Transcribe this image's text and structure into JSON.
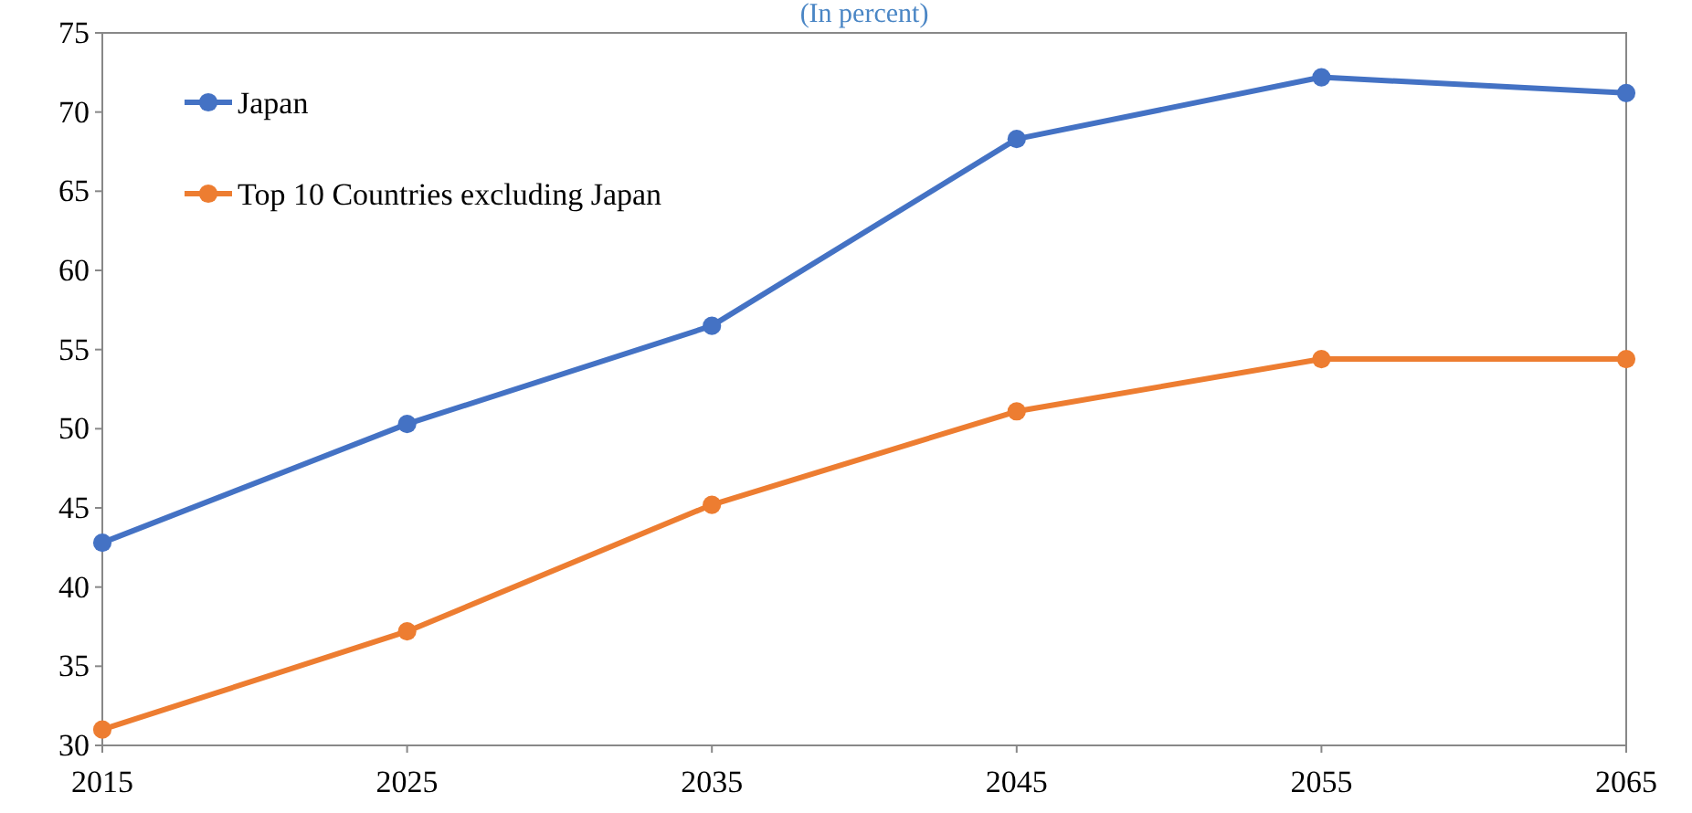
{
  "chart_data": {
    "type": "line",
    "subtitle": "(In percent)",
    "x": [
      2015,
      2025,
      2035,
      2045,
      2055,
      2065
    ],
    "series": [
      {
        "name": "Japan",
        "color": "#4472c4",
        "values": [
          42.8,
          50.3,
          56.5,
          68.3,
          72.2,
          71.2
        ]
      },
      {
        "name": "Top 10 Countries excluding Japan",
        "color": "#ed7d31",
        "values": [
          31.0,
          37.2,
          45.2,
          51.1,
          54.4,
          54.4
        ]
      }
    ],
    "xlim": [
      2015,
      2065
    ],
    "xticks": [
      2015,
      2025,
      2035,
      2045,
      2055,
      2065
    ],
    "ylim": [
      30,
      75
    ],
    "yticks": [
      30,
      35,
      40,
      45,
      50,
      55,
      60,
      65,
      70,
      75
    ],
    "grid": false,
    "legend": "top left",
    "marker": "circle",
    "line_style": "solid"
  }
}
